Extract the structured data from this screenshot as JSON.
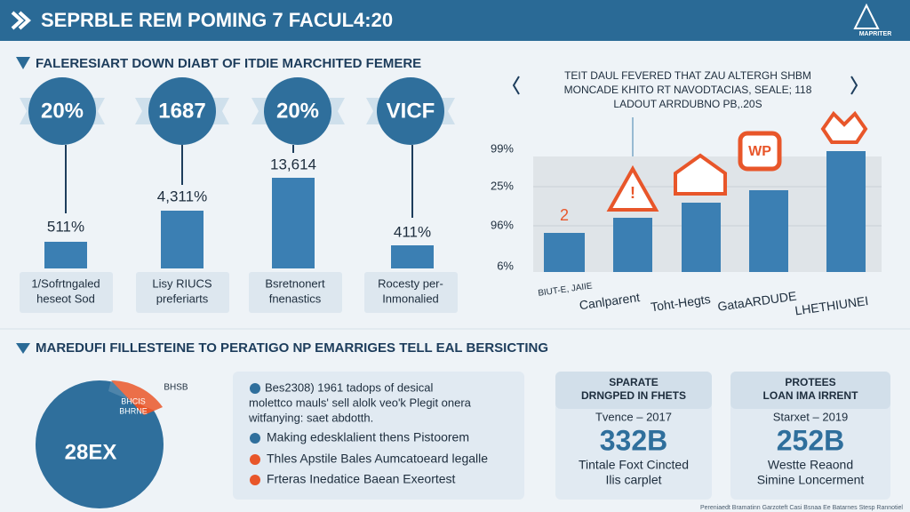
{
  "header": {
    "title": "SEPRBLE REM POMING 7 FACUL4:20",
    "logo": "MAPRITER"
  },
  "section1": {
    "heading": "FALERESIART DOWN DIABT OF ITDIE MARCHITED FEMERE",
    "items": [
      {
        "badge": "20%",
        "value": "511%",
        "label": [
          "1/Sofrtngaled",
          "heseot Sod"
        ]
      },
      {
        "badge": "1687",
        "value": "4,311%",
        "label": [
          "Lisy RIUCS",
          "preferiarts"
        ]
      },
      {
        "badge": "20%",
        "value": "13,614",
        "label": [
          "Bsretnonert",
          "fnenastics"
        ]
      },
      {
        "badge": "VICF",
        "value": "411%",
        "label": [
          "Rocesty per-",
          "Inmonalied"
        ]
      }
    ]
  },
  "chart": {
    "callout": [
      "TEIT DAUL FEVERED THAT ZAU ALTERGH SHBM",
      "MONCADE KHITO RT NAVODTACIAS, SEALE; 118",
      "LADOUT ARRDUBNO PB,.20S"
    ],
    "y_labels": [
      "99%",
      "25%",
      "96%",
      "6%"
    ],
    "categories": [
      "BIUT-E, JAIIE",
      "Canlparent",
      "Toht-Hegts",
      "GataARDUDE",
      "LHETHIUNEI"
    ],
    "bar_note": "2",
    "icon_label": "WP"
  },
  "section2": {
    "heading": "MAREDUFI FILLESTEINE TO PERATIGO NP EMARRIGES TELL EAL BERSICTING",
    "pie": {
      "center": "28EX",
      "slice": [
        "BHCIS",
        "BHRNE"
      ],
      "side": "BHSB"
    },
    "intro": [
      "Bes2308) 1961 tadops of desical",
      "molettco mauls' sell alolk veo'k Plegit onera",
      "witfanying: saet abdotth."
    ],
    "bullets": [
      "Making edesklalient thens Pistoorem",
      "Thles Apstile Bales Aumcatoeard legalle",
      "Frteras Inedatice Baean Exeortest"
    ],
    "cards": [
      {
        "title": [
          "SPARATE",
          "DRNGPED IN FHETS"
        ],
        "sub": "Tvence – 2017",
        "big": "332B",
        "foot": [
          "Tintale Foxt Cincted",
          "Ilis carplet"
        ]
      },
      {
        "title": [
          "PROTEES",
          "LOAN IMA IRRENT"
        ],
        "sub": "Starxet – 2019",
        "big": "252B",
        "foot": [
          "Westte Reaond",
          "Simine Loncerment"
        ]
      }
    ]
  },
  "footer": "Pereniaedt Bramatinn Garzoteft Casi Bsnaa Ee Batarnes Stesp Rannotiel"
}
